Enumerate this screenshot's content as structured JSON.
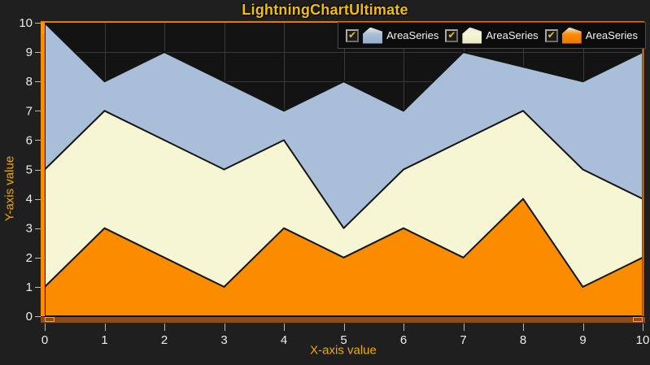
{
  "window": {
    "title": "LightningChartUltimate"
  },
  "colors": {
    "background": "#1f1f1f",
    "plot_background": "#131313",
    "grid": "#3a3a3a",
    "axis_line": "#ff8c00",
    "frame": "#e07818",
    "bottom_band": "#8a4c1e",
    "band_edge": "#402208",
    "band_edge_top": "#1c0f02",
    "title": "#f0c000",
    "axis_title": "#f2a900",
    "tick_label": "#ededed",
    "tick_mark": "#b8b8b8",
    "legend_bg": "#0c0c0c",
    "legend_border": "#4a4a4a",
    "legend_text": "#f2f2f2",
    "checkbox_bg": "#1b1b1b",
    "check": "#e5bd27",
    "series_outline": "#141414",
    "range_indicator": "#ffa030"
  },
  "legend": {
    "entries": [
      {
        "label": "AreaSeries",
        "color": "#a9bed9",
        "color_dark": "#95add0"
      },
      {
        "label": "AreaSeries",
        "color": "#f6f6d4",
        "color_dark": "#e9e7c2"
      },
      {
        "label": "AreaSeries",
        "color": "#fb8c00",
        "color_dark": "#e87600"
      }
    ]
  },
  "x_axis": {
    "label": "X-axis value",
    "ticks": [
      0,
      1,
      2,
      3,
      4,
      5,
      6,
      7,
      8,
      9,
      10
    ]
  },
  "y_axis": {
    "label": "Y-axis value",
    "ticks": [
      0,
      1,
      2,
      3,
      4,
      5,
      6,
      7,
      8,
      9,
      10
    ]
  },
  "chart_data": {
    "type": "area",
    "title": "LightningChartUltimate",
    "xlabel": "X-axis value",
    "ylabel": "Y-axis value",
    "x": [
      0,
      1,
      2,
      3,
      4,
      5,
      6,
      7,
      8,
      9,
      10
    ],
    "series": [
      {
        "name": "AreaSeries",
        "color": "#a9bed9",
        "values": [
          10,
          8,
          9,
          8,
          7,
          8,
          7,
          9,
          8.5,
          8,
          9
        ]
      },
      {
        "name": "AreaSeries",
        "color": "#f6f6d4",
        "values": [
          5,
          7,
          6,
          5,
          6,
          3,
          5,
          6,
          7,
          5,
          4
        ]
      },
      {
        "name": "AreaSeries",
        "color": "#fb8c00",
        "values": [
          1,
          3,
          2,
          1,
          3,
          2,
          3,
          2,
          4,
          1,
          2
        ]
      }
    ],
    "xlim": [
      0,
      10
    ],
    "ylim": [
      0,
      10
    ],
    "baseline": 0,
    "grid": true,
    "legend_position": "top-right"
  }
}
